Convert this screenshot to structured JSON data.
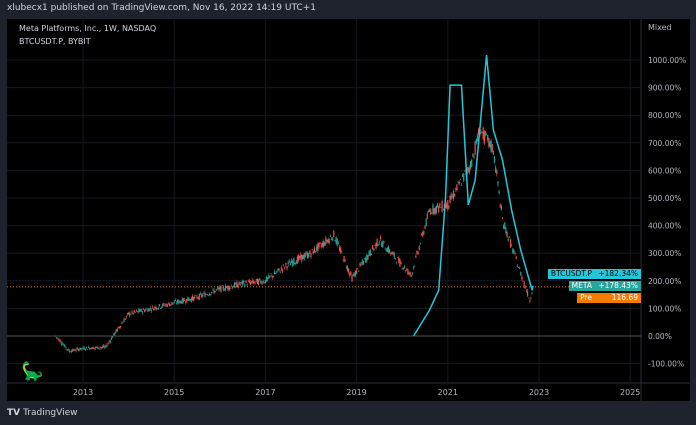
{
  "header": {
    "published": "xlubecx1 published on TradingView.com, Nov 16, 2022 14:19 UTC+1"
  },
  "legend": {
    "main": "Meta Platforms, Inc., 1W, NASDAQ",
    "compare": "BTCUSDT.P, BYBIT"
  },
  "footer": {
    "brand": "TradingView"
  },
  "colors": {
    "bg": "#000000",
    "btc": "#26c6da",
    "meta_up": "#26a69a",
    "meta_down": "#ef5350",
    "pre": "#f57c00"
  },
  "chart_data": {
    "type": "line",
    "scale_label": "Mixed",
    "xlim": [
      2011.6,
      2025.5
    ],
    "ylim": [
      -150,
      1100
    ],
    "x_ticks": [
      "2013",
      "2015",
      "2017",
      "2019",
      "2021",
      "2023",
      "2025"
    ],
    "y_ticks": [
      "1000.00%",
      "900.00%",
      "800.00%",
      "700.00%",
      "600.00%",
      "500.00%",
      "400.00%",
      "300.00%",
      "200.00%",
      "100.00%",
      "0.00%",
      "-100.00%"
    ],
    "series": [
      {
        "name": "META",
        "x": [
          2012.4,
          2012.7,
          2013.0,
          2013.5,
          2013.7,
          2014.0,
          2014.5,
          2015.0,
          2015.5,
          2016.0,
          2016.5,
          2017.0,
          2017.5,
          2018.0,
          2018.5,
          2018.9,
          2019.5,
          2020.2,
          2020.6,
          2021.0,
          2021.5,
          2021.7,
          2022.0,
          2022.2,
          2022.5,
          2022.8,
          2022.87
        ],
        "y": [
          0,
          -55,
          -45,
          -40,
          10,
          80,
          100,
          120,
          140,
          170,
          190,
          200,
          260,
          300,
          366,
          210,
          348,
          220,
          456,
          475,
          620,
          746,
          674,
          420,
          275,
          130,
          178
        ]
      },
      {
        "name": "BTCUSDT.P",
        "x": [
          2020.25,
          2020.6,
          2020.8,
          2020.95,
          2021.05,
          2021.3,
          2021.45,
          2021.6,
          2021.85,
          2022.0,
          2022.2,
          2022.4,
          2022.6,
          2022.85,
          2022.87
        ],
        "y": [
          0,
          94,
          166,
          500,
          909,
          909,
          475,
          565,
          1018,
          746,
          637,
          456,
          311,
          166,
          182
        ]
      }
    ],
    "tags": [
      {
        "label": "BTCUSDT.P",
        "value": "+182.34%"
      },
      {
        "label": "META",
        "value": "+178.43%"
      },
      {
        "label": "Pre",
        "value": "116.69"
      }
    ]
  }
}
